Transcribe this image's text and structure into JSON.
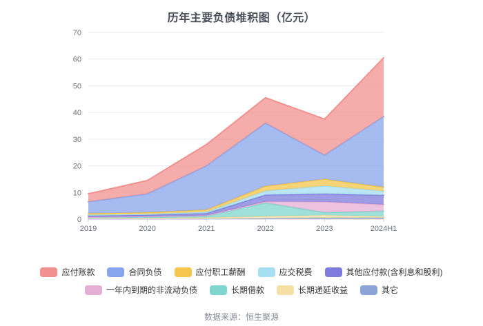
{
  "chart_data": {
    "type": "area",
    "stacked": true,
    "stack_note": "series listed top-to-bottom; first series renders as the top band",
    "title": "历年主要负债堆积图（亿元）",
    "x": [
      "2019",
      "2020",
      "2021",
      "2022",
      "2023",
      "2024H1"
    ],
    "xlabel": "",
    "ylabel": "",
    "ylim": [
      0,
      70
    ],
    "yticks": [
      0,
      10,
      20,
      30,
      40,
      50,
      60,
      70
    ],
    "grid": true,
    "legend_position": "bottom",
    "legend_rows": [
      5,
      4
    ],
    "series": [
      {
        "name": "应付账款",
        "color": "#F1918F",
        "values": [
          3.0,
          5.0,
          8.0,
          9.5,
          13.5,
          22.0
        ]
      },
      {
        "name": "合同负债",
        "color": "#88A6EC",
        "values": [
          4.3,
          7.0,
          16.5,
          23.6,
          9.0,
          26.5
        ]
      },
      {
        "name": "应付职工薪酬",
        "color": "#F6C54B",
        "values": [
          0.6,
          0.6,
          0.8,
          1.8,
          2.5,
          1.5
        ]
      },
      {
        "name": "应交税费",
        "color": "#A6DFF2",
        "values": [
          0.3,
          0.3,
          0.5,
          1.5,
          3.0,
          1.5
        ]
      },
      {
        "name": "其他应付款(含利息和股利)",
        "color": "#7D7BDB",
        "values": [
          0.5,
          0.6,
          0.8,
          2.5,
          3.0,
          3.5
        ]
      },
      {
        "name": "一年内到期的非流动负债",
        "color": "#E5AED4",
        "values": [
          0.2,
          0.2,
          0.3,
          0.5,
          4.0,
          2.5
        ]
      },
      {
        "name": "长期借款",
        "color": "#7FD6CF",
        "values": [
          0.2,
          0.3,
          0.5,
          5.0,
          1.0,
          2.0
        ]
      },
      {
        "name": "长期递延收益",
        "color": "#F6DFA5",
        "values": [
          0.3,
          0.4,
          0.5,
          0.8,
          1.0,
          0.5
        ]
      },
      {
        "name": "其它",
        "color": "#8CA3D8",
        "values": [
          0.1,
          0.1,
          0.1,
          0.3,
          0.5,
          0.5
        ]
      }
    ],
    "totals": [
      9.5,
      14.5,
      28.0,
      45.5,
      37.5,
      60.5
    ],
    "axis_colors": {
      "grid": "#E8EAF0",
      "axis_line": "#C9CDD4",
      "tick_label": "#6E7079"
    }
  },
  "footer": {
    "source": "数据来源：恒生聚源"
  }
}
